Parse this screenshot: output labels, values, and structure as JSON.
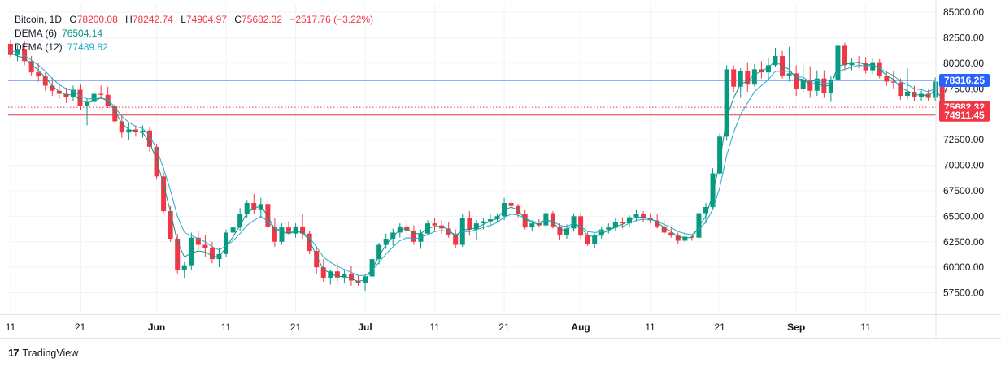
{
  "legend": {
    "symbol": "Bitcoin, 1D",
    "o_label": "O",
    "o_val": "78200.08",
    "h_label": "H",
    "h_val": "78242.74",
    "l_label": "L",
    "l_val": "74904.97",
    "c_label": "C",
    "c_val": "75682.32",
    "change": "−2517.76 (−3.22%)",
    "dema6_label": "DEMA (6)",
    "dema6_val": "76504.14",
    "dema12_label": "DEMA (12)",
    "dema12_val": "77489.82"
  },
  "branding": {
    "logo": "17",
    "name": "TradingView"
  },
  "colors": {
    "up": "#089981",
    "down": "#f23645",
    "dema6": "#089981",
    "dema12": "#26a9c9",
    "hline_blue": "#2962ff",
    "hline_red": "#f23645"
  },
  "chart_data": {
    "type": "candlestick",
    "ylim": [
      55000,
      85000
    ],
    "y_ticks": [
      85000,
      82500,
      80000,
      77500,
      75000,
      72500,
      70000,
      67500,
      65000,
      62500,
      60000,
      57500
    ],
    "y_tick_labels": [
      "85000.00",
      "82500.00",
      "80000.00",
      "77500.00",
      "75000.00",
      "72500.00",
      "70000.00",
      "67500.00",
      "65000.00",
      "62500.00",
      "60000.00",
      "57500.00"
    ],
    "x_ticks": [
      {
        "label": "11",
        "bar": 0
      },
      {
        "label": "21",
        "bar": 10
      },
      {
        "label": "Jun",
        "bar": 21
      },
      {
        "label": "11",
        "bar": 31
      },
      {
        "label": "21",
        "bar": 41
      },
      {
        "label": "Jul",
        "bar": 51
      },
      {
        "label": "11",
        "bar": 61
      },
      {
        "label": "21",
        "bar": 71
      },
      {
        "label": "Aug",
        "bar": 82
      },
      {
        "label": "11",
        "bar": 92
      },
      {
        "label": "21",
        "bar": 102
      },
      {
        "label": "Sep",
        "bar": 113
      },
      {
        "label": "11",
        "bar": 123
      }
    ],
    "price_lines": [
      {
        "value": 78316.25,
        "label": "78316.25",
        "color": "#2962ff",
        "style": "solid"
      },
      {
        "value": 75682.32,
        "label": "75682.32",
        "color": "#f23645",
        "style": "dotted"
      },
      {
        "value": 74911.45,
        "label": "74911.45",
        "color": "#f23645",
        "style": "solid"
      }
    ],
    "candles": [
      [
        81900,
        82300,
        80600,
        80800
      ],
      [
        80800,
        81800,
        80200,
        81400
      ],
      [
        81400,
        82200,
        79800,
        80200
      ],
      [
        80200,
        80700,
        78800,
        79100
      ],
      [
        79100,
        80000,
        78200,
        78700
      ],
      [
        78700,
        79100,
        77300,
        77800
      ],
      [
        77800,
        78600,
        76800,
        77300
      ],
      [
        77300,
        77900,
        76500,
        77000
      ],
      [
        77000,
        77600,
        76100,
        76700
      ],
      [
        76700,
        77800,
        76300,
        77400
      ],
      [
        77400,
        77900,
        75400,
        75800
      ],
      [
        75800,
        76500,
        73900,
        76200
      ],
      [
        76200,
        77300,
        75800,
        77000
      ],
      [
        77000,
        77800,
        76500,
        76900
      ],
      [
        76900,
        77700,
        75600,
        75800
      ],
      [
        75800,
        76000,
        74000,
        74300
      ],
      [
        74300,
        74900,
        72700,
        73200
      ],
      [
        73200,
        74100,
        72500,
        73500
      ],
      [
        73500,
        73900,
        72800,
        73300
      ],
      [
        73300,
        73900,
        72700,
        73400
      ],
      [
        73400,
        73800,
        71300,
        71800
      ],
      [
        71800,
        72100,
        68600,
        68900
      ],
      [
        68900,
        69300,
        65300,
        65500
      ],
      [
        65500,
        66000,
        62500,
        62800
      ],
      [
        62800,
        63300,
        59400,
        59700
      ],
      [
        59700,
        60500,
        58900,
        60200
      ],
      [
        60200,
        63400,
        59700,
        62900
      ],
      [
        62900,
        63600,
        61700,
        62200
      ],
      [
        62200,
        63200,
        61000,
        61900
      ],
      [
        61900,
        62500,
        60400,
        60800
      ],
      [
        60800,
        61900,
        60000,
        61300
      ],
      [
        61300,
        63700,
        61000,
        63400
      ],
      [
        63400,
        64500,
        62800,
        63900
      ],
      [
        63900,
        65800,
        63600,
        65200
      ],
      [
        65200,
        66600,
        64800,
        66300
      ],
      [
        66300,
        67200,
        65200,
        65600
      ],
      [
        65600,
        66800,
        64800,
        66200
      ],
      [
        66200,
        66500,
        63600,
        64000
      ],
      [
        64000,
        64800,
        62000,
        62500
      ],
      [
        62500,
        64300,
        62200,
        63900
      ],
      [
        63900,
        64500,
        63200,
        63300
      ],
      [
        63300,
        64300,
        62900,
        64000
      ],
      [
        64000,
        65200,
        62800,
        63300
      ],
      [
        63300,
        63600,
        61300,
        61600
      ],
      [
        61600,
        62100,
        59400,
        60000
      ],
      [
        60000,
        60800,
        58600,
        58900
      ],
      [
        58900,
        59800,
        58300,
        59600
      ],
      [
        59600,
        60400,
        58600,
        59000
      ],
      [
        59000,
        59700,
        58500,
        59300
      ],
      [
        59300,
        60100,
        58200,
        58700
      ],
      [
        58700,
        59200,
        58200,
        58500
      ],
      [
        58500,
        59300,
        57700,
        59100
      ],
      [
        59100,
        61100,
        58900,
        60800
      ],
      [
        60800,
        62400,
        60300,
        62200
      ],
      [
        62200,
        63300,
        61800,
        62800
      ],
      [
        62800,
        63800,
        62100,
        63400
      ],
      [
        63400,
        64300,
        62900,
        64000
      ],
      [
        64000,
        64600,
        63100,
        63600
      ],
      [
        63600,
        64100,
        62200,
        62500
      ],
      [
        62500,
        63700,
        61800,
        63300
      ],
      [
        63300,
        64600,
        63100,
        64300
      ],
      [
        64300,
        64800,
        63600,
        64100
      ],
      [
        64100,
        64600,
        63300,
        63800
      ],
      [
        63800,
        64400,
        62900,
        63200
      ],
      [
        63200,
        63700,
        61900,
        62200
      ],
      [
        62200,
        65200,
        62000,
        64800
      ],
      [
        64800,
        65500,
        63100,
        63700
      ],
      [
        63700,
        64600,
        62700,
        64300
      ],
      [
        64300,
        64800,
        63700,
        64500
      ],
      [
        64500,
        65200,
        64000,
        64700
      ],
      [
        64700,
        65300,
        64400,
        65000
      ],
      [
        65000,
        66800,
        64600,
        66300
      ],
      [
        66300,
        66700,
        65600,
        66000
      ],
      [
        66000,
        66200,
        64900,
        65200
      ],
      [
        65200,
        65600,
        63700,
        63900
      ],
      [
        63900,
        64600,
        63500,
        64300
      ],
      [
        64300,
        64700,
        63900,
        64100
      ],
      [
        64100,
        65600,
        64000,
        65300
      ],
      [
        65300,
        65500,
        63800,
        64000
      ],
      [
        64000,
        64300,
        62700,
        63200
      ],
      [
        63200,
        64200,
        62800,
        63800
      ],
      [
        63800,
        65300,
        63500,
        65000
      ],
      [
        65000,
        65300,
        62800,
        63100
      ],
      [
        63100,
        63500,
        62100,
        62300
      ],
      [
        62300,
        63300,
        61900,
        63100
      ],
      [
        63100,
        64000,
        62800,
        63700
      ],
      [
        63700,
        64300,
        63300,
        63900
      ],
      [
        63900,
        64800,
        63600,
        64400
      ],
      [
        64400,
        64900,
        63800,
        64300
      ],
      [
        64300,
        65100,
        63900,
        64900
      ],
      [
        64900,
        65600,
        64500,
        65200
      ],
      [
        65200,
        65500,
        64400,
        64800
      ],
      [
        64800,
        65300,
        64300,
        64600
      ],
      [
        64600,
        65200,
        63800,
        64000
      ],
      [
        64000,
        64600,
        63100,
        63400
      ],
      [
        63400,
        64000,
        62900,
        63100
      ],
      [
        63100,
        63400,
        62300,
        62600
      ],
      [
        62600,
        63400,
        62200,
        63000
      ],
      [
        63000,
        63200,
        62600,
        62900
      ],
      [
        62900,
        65600,
        62700,
        65300
      ],
      [
        65300,
        66300,
        64300,
        65900
      ],
      [
        65900,
        69700,
        65600,
        69200
      ],
      [
        69200,
        73100,
        69000,
        72800
      ],
      [
        72800,
        79800,
        72400,
        79400
      ],
      [
        79400,
        79800,
        77200,
        77700
      ],
      [
        77700,
        79500,
        76600,
        79200
      ],
      [
        79200,
        80100,
        77200,
        77900
      ],
      [
        77900,
        79900,
        77700,
        79400
      ],
      [
        79400,
        80200,
        78500,
        79100
      ],
      [
        79100,
        80500,
        78400,
        79800
      ],
      [
        79800,
        81500,
        79600,
        80700
      ],
      [
        80700,
        81200,
        78500,
        78800
      ],
      [
        78800,
        81600,
        78200,
        79000
      ],
      [
        79000,
        79800,
        76800,
        77500
      ],
      [
        77500,
        79800,
        77100,
        78400
      ],
      [
        78400,
        79700,
        76600,
        77300
      ],
      [
        77300,
        79300,
        76800,
        78500
      ],
      [
        78500,
        79300,
        76600,
        77100
      ],
      [
        77100,
        78700,
        76200,
        78400
      ],
      [
        78400,
        82500,
        77500,
        81700
      ],
      [
        81700,
        82000,
        79300,
        79800
      ],
      [
        79800,
        80500,
        79300,
        80100
      ],
      [
        80100,
        80700,
        79500,
        80000
      ],
      [
        80000,
        80600,
        79000,
        79300
      ],
      [
        79300,
        80500,
        78900,
        80100
      ],
      [
        80100,
        80400,
        78500,
        78800
      ],
      [
        78800,
        79200,
        77800,
        78200
      ],
      [
        78200,
        79200,
        77500,
        78100
      ],
      [
        78100,
        78500,
        76400,
        76800
      ],
      [
        76800,
        79500,
        76500,
        77200
      ],
      [
        77200,
        77800,
        76300,
        76700
      ],
      [
        76700,
        77300,
        76300,
        77000
      ],
      [
        77000,
        77400,
        76300,
        76600
      ],
      [
        76600,
        78600,
        76300,
        78200
      ],
      [
        78200,
        78243,
        74905,
        75682
      ]
    ],
    "dema6": [
      81000,
      80700,
      80500,
      79900,
      79300,
      78600,
      77800,
      77200,
      76900,
      76900,
      76400,
      76100,
      76300,
      76600,
      76300,
      75300,
      74100,
      73500,
      73300,
      73200,
      72200,
      70500,
      68100,
      65400,
      62500,
      61000,
      61400,
      61600,
      61500,
      61100,
      61000,
      62000,
      63000,
      64100,
      65300,
      65800,
      66000,
      65000,
      63700,
      63500,
      63300,
      63500,
      63400,
      62600,
      61100,
      59800,
      59400,
      59100,
      59100,
      58900,
      58600,
      58800,
      59800,
      61100,
      62200,
      63000,
      63700,
      63800,
      63300,
      63300,
      63800,
      64000,
      64000,
      63700,
      63000,
      63700,
      63700,
      63900,
      64200,
      64500,
      64800,
      65600,
      65900,
      65600,
      64700,
      64400,
      64200,
      64700,
      64400,
      63700,
      63600,
      64300,
      63900,
      63100,
      63000,
      63300,
      63600,
      64000,
      64200,
      64600,
      64900,
      64900,
      64800,
      64400,
      63900,
      63500,
      63000,
      62900,
      62900,
      64000,
      65000,
      67200,
      70300,
      74700,
      76600,
      78000,
      78200,
      78900,
      79200,
      79600,
      80200,
      79700,
      79400,
      78500,
      78400,
      77900,
      78100,
      77700,
      77900,
      79700,
      79900,
      80000,
      80100,
      79800,
      79900,
      79400,
      78800,
      78400,
      77600,
      77300,
      76900,
      76900,
      76800,
      77400,
      76500
    ],
    "dema12": [
      81300,
      81000,
      80800,
      80300,
      79800,
      79200,
      78500,
      77900,
      77500,
      77300,
      76800,
      76500,
      76500,
      76600,
      76400,
      75700,
      74800,
      74200,
      73800,
      73600,
      72900,
      71600,
      69700,
      67500,
      65000,
      63400,
      63100,
      62800,
      62500,
      62000,
      61700,
      62100,
      62600,
      63300,
      64100,
      64600,
      65000,
      64500,
      63800,
      63600,
      63500,
      63500,
      63400,
      62900,
      62000,
      61000,
      60500,
      60100,
      59800,
      59500,
      59200,
      59200,
      59700,
      60500,
      61300,
      62000,
      62600,
      62900,
      62800,
      62900,
      63200,
      63500,
      63600,
      63500,
      63200,
      63500,
      63500,
      63700,
      63900,
      64100,
      64400,
      64900,
      65200,
      65100,
      64800,
      64500,
      64400,
      64600,
      64500,
      64100,
      64000,
      64300,
      64000,
      63500,
      63400,
      63500,
      63600,
      63900,
      64000,
      64300,
      64600,
      64700,
      64700,
      64500,
      64200,
      63900,
      63500,
      63300,
      63200,
      63800,
      64400,
      65700,
      67800,
      71000,
      73200,
      75000,
      76100,
      77200,
      77800,
      78400,
      79200,
      79200,
      79200,
      78700,
      78600,
      78200,
      78300,
      78000,
      78100,
      79200,
      79400,
      79600,
      79800,
      79700,
      79800,
      79500,
      79100,
      78800,
      78200,
      77900,
      77500,
      77400,
      77200,
      77500,
      77490
    ]
  }
}
